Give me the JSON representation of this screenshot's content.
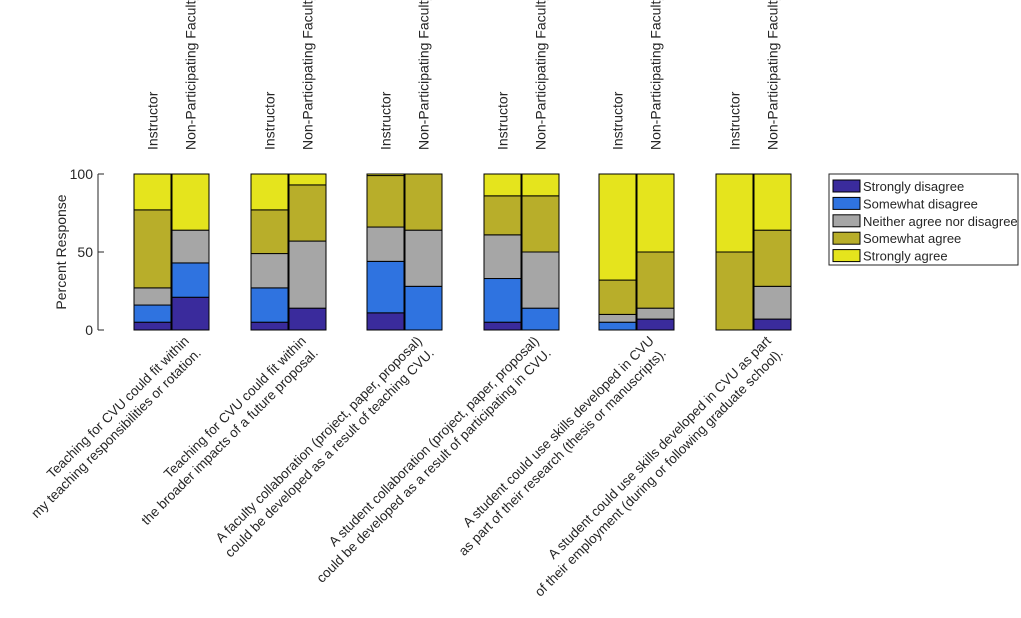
{
  "chart_data": {
    "type": "bar",
    "stacked": true,
    "ylabel": "Percent Response",
    "ylim": [
      0,
      100
    ],
    "yticks": [
      0,
      50,
      100
    ],
    "group_labels": [
      "Instructor",
      "Non-Participating Faculty"
    ],
    "categories": [
      [
        "Teaching for CVU could fit within",
        "my teaching responsibilities or rotation."
      ],
      [
        "Teaching for CVU could fit within",
        "the broader impacts of a future proposal."
      ],
      [
        "A faculty collaboration (project, paper, proposal)",
        "could be developed as a result of teaching CVU."
      ],
      [
        "A student collaboration (project, paper, proposal)",
        "could be developed as a result of participating in CVU."
      ],
      [
        "A student could use skills developed in CVU",
        "as part of their research (thesis or manuscripts)."
      ],
      [
        "A student could use skills developed in CVU as part",
        "of their employment (during or following graduate school)."
      ]
    ],
    "legend_position": "right",
    "series": [
      {
        "name": "Strongly disagree",
        "color": "#3a2b9c"
      },
      {
        "name": "Somewhat disagree",
        "color": "#2f73e0"
      },
      {
        "name": "Neither agree nor disagree",
        "color": "#a6a6a6"
      },
      {
        "name": "Somewhat agree",
        "color": "#b8ae2a"
      },
      {
        "name": "Strongly agree",
        "color": "#e5e41d"
      }
    ],
    "bars": [
      [
        [
          5,
          11,
          11,
          50,
          23
        ],
        [
          21,
          22,
          21,
          0,
          36
        ]
      ],
      [
        [
          5,
          22,
          22,
          28,
          23
        ],
        [
          14,
          0,
          43,
          36,
          7
        ]
      ],
      [
        [
          11,
          33,
          22,
          33,
          1
        ],
        [
          0,
          28,
          36,
          36,
          0
        ]
      ],
      [
        [
          5,
          28,
          28,
          25,
          14
        ],
        [
          0,
          14,
          36,
          36,
          14
        ]
      ],
      [
        [
          0,
          5,
          5,
          22,
          68
        ],
        [
          7,
          0,
          7,
          36,
          50
        ]
      ],
      [
        [
          0,
          0,
          0,
          50,
          50
        ],
        [
          7,
          0,
          21,
          36,
          36
        ]
      ]
    ]
  }
}
